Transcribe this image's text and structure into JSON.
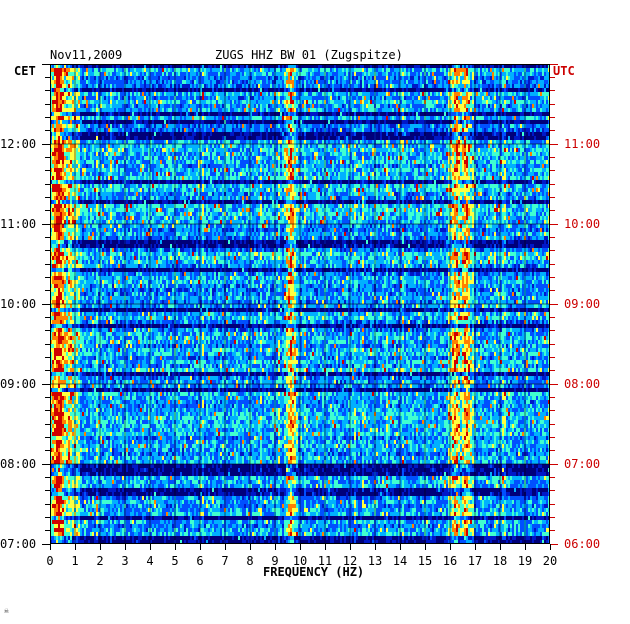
{
  "header": {
    "date": "Nov11,2009",
    "station": "ZUGS HHZ BW 01 (Zugspitze)",
    "left_timezone": "CET",
    "right_timezone": "UTC",
    "corner_mark": "☠"
  },
  "chart_data": {
    "type": "heatmap",
    "title": "ZUGS HHZ BW 01 (Zugspitze)",
    "date": "Nov11,2009",
    "xlabel": "FREQUENCY (HZ)",
    "xlim": [
      0,
      20
    ],
    "x_ticks": [
      "0",
      "1",
      "2",
      "3",
      "4",
      "5",
      "6",
      "7",
      "8",
      "9",
      "10",
      "11",
      "12",
      "13",
      "14",
      "15",
      "16",
      "17",
      "18",
      "19",
      "20"
    ],
    "y_left_label": "CET",
    "y_right_label": "UTC",
    "y_left_ticks": [
      "12:00",
      "11:00",
      "10:00",
      "09:00",
      "08:00",
      "07:00"
    ],
    "y_right_ticks": [
      "11:00",
      "10:00",
      "09:00",
      "08:00",
      "07:00",
      "06:00"
    ],
    "y_tick_hours": [
      12,
      11,
      10,
      9,
      8,
      7
    ],
    "y_range_hours_cet": [
      7,
      13
    ],
    "colorscale": [
      "#00007a",
      "#0018c8",
      "#0050ff",
      "#00b0ff",
      "#40ffd0",
      "#ffff40",
      "#ff8000",
      "#d00000"
    ],
    "persistent_bands_hz": [
      0.3,
      9.6,
      16.2,
      16.6
    ],
    "grid": true
  }
}
